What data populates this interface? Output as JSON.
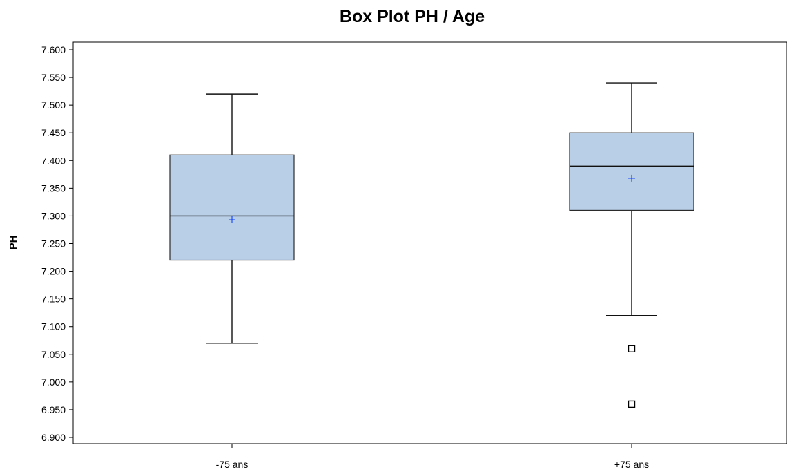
{
  "chart_data": {
    "type": "boxplot",
    "title": "Box Plot PH / Age",
    "xlabel": "",
    "ylabel": "PH",
    "categories": [
      "-75 ans",
      "+75 ans"
    ],
    "ylim": [
      6.9,
      7.6
    ],
    "y_ticks": [
      6.9,
      6.95,
      7.0,
      7.05,
      7.1,
      7.15,
      7.2,
      7.25,
      7.3,
      7.35,
      7.4,
      7.45,
      7.5,
      7.55,
      7.6
    ],
    "y_tick_labels": [
      "6.900",
      "6.950",
      "7.000",
      "7.050",
      "7.100",
      "7.150",
      "7.200",
      "7.250",
      "7.300",
      "7.350",
      "7.400",
      "7.450",
      "7.500",
      "7.550",
      "7.600"
    ],
    "grid": false,
    "legend": "none",
    "colors": {
      "box_fill": "#b9cfe7",
      "mean_marker": "#0033ff"
    },
    "boxes": [
      {
        "category": "-75 ans",
        "whisker_low": 7.07,
        "q1": 7.22,
        "median": 7.3,
        "q3": 7.41,
        "whisker_high": 7.52,
        "mean": 7.293,
        "outliers": []
      },
      {
        "category": "+75 ans",
        "whisker_low": 7.12,
        "q1": 7.31,
        "median": 7.39,
        "q3": 7.45,
        "whisker_high": 7.54,
        "mean": 7.368,
        "outliers": [
          7.06,
          6.96
        ]
      }
    ]
  }
}
